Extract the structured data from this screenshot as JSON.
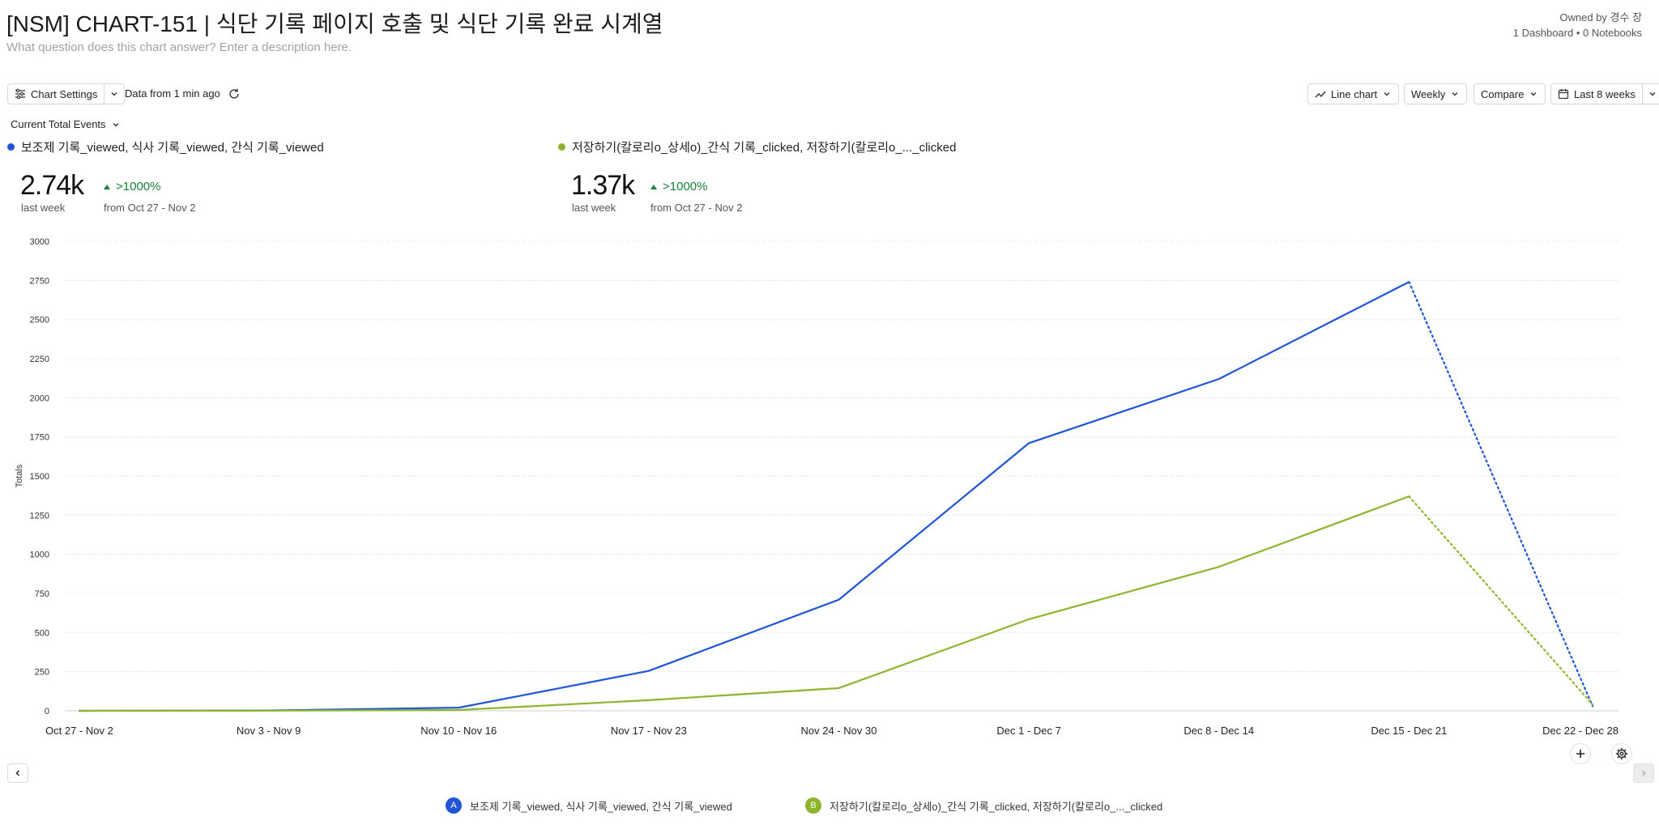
{
  "header": {
    "title": "[NSM] CHART-151 | 식단 기록 페이지 호출 및 식단 기록 완료 시계열",
    "description_placeholder": "What question does this chart answer? Enter a description here.",
    "owner": "Owned by 경수 장",
    "links": "1 Dashboard • 0 Notebooks"
  },
  "toolbar": {
    "chart_settings": "Chart Settings",
    "data_freshness": "Data from 1 min ago",
    "chart_type": "Line chart",
    "interval": "Weekly",
    "compare": "Compare",
    "date_range": "Last 8 weeks",
    "metric_selector": "Current Total Events"
  },
  "colors": {
    "series_a": "#1f55d6",
    "series_b": "#8cb52d",
    "positive": "#1a7f37"
  },
  "metrics": [
    {
      "legend": "보조제 기록_viewed, 식사 기록_viewed, 간식 기록_viewed",
      "value": "2.74k",
      "period": "last week",
      "change": ">1000%",
      "from": "from Oct 27 - Nov 2"
    },
    {
      "legend": "저장하기(칼로리o_상세o)_간식 기록_clicked, 저장하기(칼로리o_..._clicked",
      "value": "1.37k",
      "period": "last week",
      "change": ">1000%",
      "from": "from Oct 27 - Nov 2"
    }
  ],
  "bottom_legend": [
    {
      "badge": "A",
      "label": "보조제 기록_viewed, 식사 기록_viewed, 간식 기록_viewed"
    },
    {
      "badge": "B",
      "label": "저장하기(칼로리o_상세o)_간식 기록_clicked, 저장하기(칼로리o_..._clicked"
    }
  ],
  "chart_data": {
    "type": "line",
    "ylabel": "Totals",
    "xlabel": "",
    "ylim": [
      0,
      3000
    ],
    "yticks": [
      0,
      250,
      500,
      750,
      1000,
      1250,
      1500,
      1750,
      2000,
      2250,
      2500,
      2750,
      3000
    ],
    "categories": [
      "Oct 27 - Nov 2",
      "Nov 3 - Nov 9",
      "Nov 10 - Nov 16",
      "Nov 17 - Nov 23",
      "Nov 24 - Nov 30",
      "Dec 1 - Dec 7",
      "Dec 8 - Dec 14",
      "Dec 15 - Dec 21",
      "Dec 22 - Dec 28"
    ],
    "incomplete_last_period": true,
    "series": [
      {
        "name": "보조제 기록_viewed, 식사 기록_viewed, 간식 기록_viewed",
        "badge": "A",
        "values": [
          0,
          2,
          20,
          255,
          710,
          1710,
          2120,
          2740,
          30
        ]
      },
      {
        "name": "저장하기(칼로리o_상세o)_간식 기록_clicked, 저장하기(칼로리o_..._clicked",
        "badge": "B",
        "values": [
          0,
          1,
          5,
          68,
          145,
          585,
          920,
          1370,
          40
        ]
      }
    ]
  }
}
